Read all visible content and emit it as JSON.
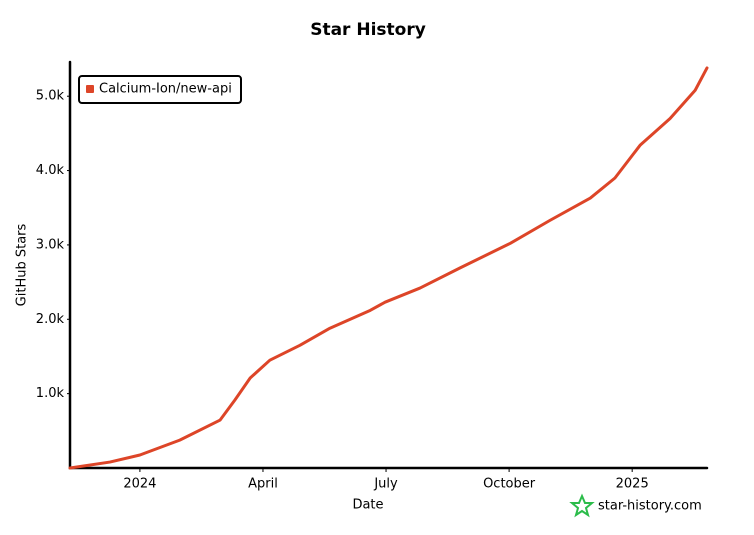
{
  "chart_data": {
    "type": "line",
    "title": "Star History",
    "x_label": "Date",
    "y_label": "GitHub Stars",
    "x": [
      2023.858,
      2023.939,
      2024.0,
      2024.081,
      2024.163,
      2024.193,
      2024.224,
      2024.264,
      2024.325,
      2024.386,
      2024.468,
      2024.498,
      2024.569,
      2024.65,
      2024.752,
      2024.833,
      2024.915,
      2024.965,
      2025.016,
      2025.077,
      2025.128,
      2025.152
    ],
    "series": [
      {
        "name": "Calcium-Ion/new-api",
        "color": "#dd4528",
        "values": [
          0,
          80,
          175,
          375,
          645,
          915,
          1210,
          1450,
          1650,
          1880,
          2120,
          2230,
          2420,
          2690,
          3020,
          3330,
          3630,
          3900,
          4340,
          4700,
          5080,
          5380
        ]
      }
    ],
    "xlim": [
      2023.858,
      2025.152
    ],
    "xticks": [
      {
        "value": 2024,
        "label": "2024"
      },
      {
        "value": 2024.25,
        "label": "April"
      },
      {
        "value": 2024.5,
        "label": "July"
      },
      {
        "value": 2024.75,
        "label": "October"
      },
      {
        "value": 2025,
        "label": "2025"
      }
    ],
    "ylim": [
      0,
      5460
    ],
    "yticks": [
      {
        "value": 1000,
        "label": "1.0k"
      },
      {
        "value": 2000,
        "label": "2.0k"
      },
      {
        "value": 3000,
        "label": "3.0k"
      },
      {
        "value": 4000,
        "label": "4.0k"
      },
      {
        "value": 5000,
        "label": "5.0k"
      }
    ],
    "legend": "top-left",
    "watermark": "star-history.com"
  }
}
